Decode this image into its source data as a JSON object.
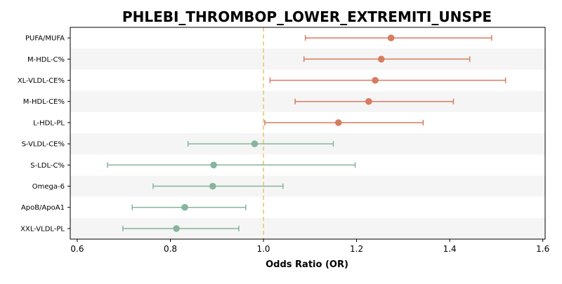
{
  "chart_data": {
    "type": "forest",
    "title": "PHLEBI_THROMBOP_LOWER_EXTREMITI_UNSPE",
    "xlabel": "Odds Ratio (OR)",
    "xlim": [
      0.585,
      1.605
    ],
    "xticks": [
      0.6,
      0.8,
      1.0,
      1.2,
      1.4,
      1.6
    ],
    "xtick_labels": [
      "0.6",
      "0.8",
      "1.0",
      "1.2",
      "1.4",
      "1.6"
    ],
    "reference_line": 1.0,
    "colors": {
      "positive": "#d97b60",
      "negative": "#86b59b",
      "reference": "#e8c77a",
      "stripe": "#f5f5f5"
    },
    "rows": [
      {
        "label": "PUFA/MUFA",
        "or": 1.274,
        "low": 1.09,
        "high": 1.49
      },
      {
        "label": "M-HDL-C%",
        "or": 1.253,
        "low": 1.087,
        "high": 1.443
      },
      {
        "label": "XL-VLDL-CE%",
        "or": 1.24,
        "low": 1.014,
        "high": 1.52
      },
      {
        "label": "M-HDL-CE%",
        "or": 1.226,
        "low": 1.068,
        "high": 1.408
      },
      {
        "label": "L-HDL-PL",
        "or": 1.161,
        "low": 1.003,
        "high": 1.343
      },
      {
        "label": "S-VLDL-CE%",
        "or": 0.981,
        "low": 0.838,
        "high": 1.15
      },
      {
        "label": "S-LDL-C%",
        "or": 0.893,
        "low": 0.665,
        "high": 1.197
      },
      {
        "label": "Omega-6",
        "or": 0.891,
        "low": 0.763,
        "high": 1.042
      },
      {
        "label": "ApoB/ApoA1",
        "or": 0.831,
        "low": 0.718,
        "high": 0.962
      },
      {
        "label": "XXL-VLDL-PL",
        "or": 0.813,
        "low": 0.698,
        "high": 0.947
      }
    ]
  }
}
